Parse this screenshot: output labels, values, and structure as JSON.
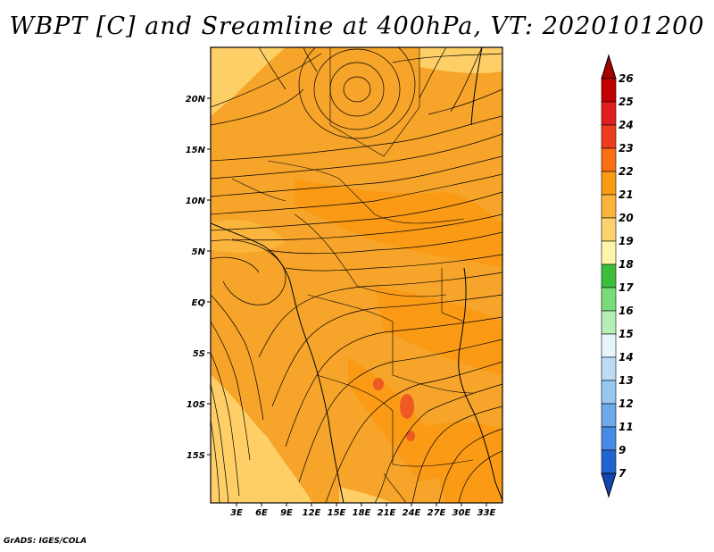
{
  "title": "WBPT [C] and Sreamline at 400hPa, VT: 2020101200",
  "footer": "GrADS: IGES/COLA",
  "lat_labels": [
    "20N",
    "15N",
    "10N",
    "5N",
    "EQ",
    "5S",
    "10S",
    "15S"
  ],
  "lon_labels": [
    "3E",
    "6E",
    "9E",
    "12E",
    "15E",
    "18E",
    "21E",
    "24E",
    "27E",
    "30E",
    "33E"
  ],
  "colorbar": {
    "labels": [
      "26",
      "25",
      "24",
      "23",
      "22",
      "21",
      "20",
      "19",
      "18",
      "17",
      "16",
      "15",
      "14",
      "13",
      "12",
      "11",
      "9",
      "7"
    ],
    "colors": [
      "#a50000",
      "#c00000",
      "#e01e1e",
      "#f03c1e",
      "#fa6e14",
      "#fa9b14",
      "#fbb43c",
      "#fdd26e",
      "#fdf5aa",
      "#3cbe3c",
      "#78dc78",
      "#b4f0b4",
      "#e6f5fa",
      "#bcdcf5",
      "#96c8f0",
      "#6eaaeb",
      "#468ce6",
      "#2064d2",
      "#1446b4"
    ]
  },
  "colors": {
    "background_field": "#f6a42a",
    "warm_field": "#fb9a14",
    "cool_field": "#fdcf66",
    "hot_spot": "#ee5a22"
  }
}
